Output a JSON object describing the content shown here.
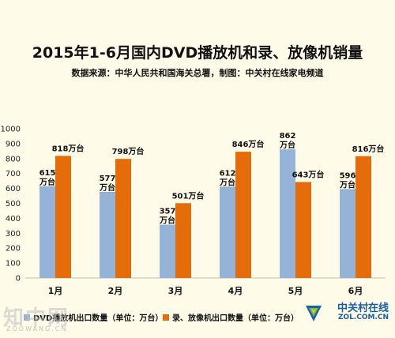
{
  "chart_data": {
    "type": "bar",
    "title": "2015年1-6月国内DVD播放机和录、放像机销量",
    "subtitle": "数据来源：中华人民共和国海关总署，制图：中关村在线家电频道",
    "categories": [
      "1月",
      "2月",
      "3月",
      "4月",
      "5月",
      "6月"
    ],
    "series": [
      {
        "name": "DVD播放机出口数量（单位：万台）",
        "values": [
          615,
          577,
          357,
          612,
          862,
          596
        ],
        "color": "#95b3d7"
      },
      {
        "name": "录、放像机出口数量（单位：万台）",
        "values": [
          818,
          798,
          501,
          846,
          643,
          816
        ],
        "color": "#e46c0a"
      }
    ],
    "data_label_suffix": "万台",
    "ylim": [
      0,
      1000
    ],
    "yticks": [
      0,
      100,
      200,
      300,
      400,
      500,
      600,
      700,
      800,
      900,
      1000
    ],
    "grid": false,
    "legend_position": "bottom"
  },
  "watermarks": {
    "left": "知中网",
    "left_sub": "ZOOWANG.CN",
    "right_cn": "中关村在线",
    "right_en": "ZOL.COM.CN"
  }
}
